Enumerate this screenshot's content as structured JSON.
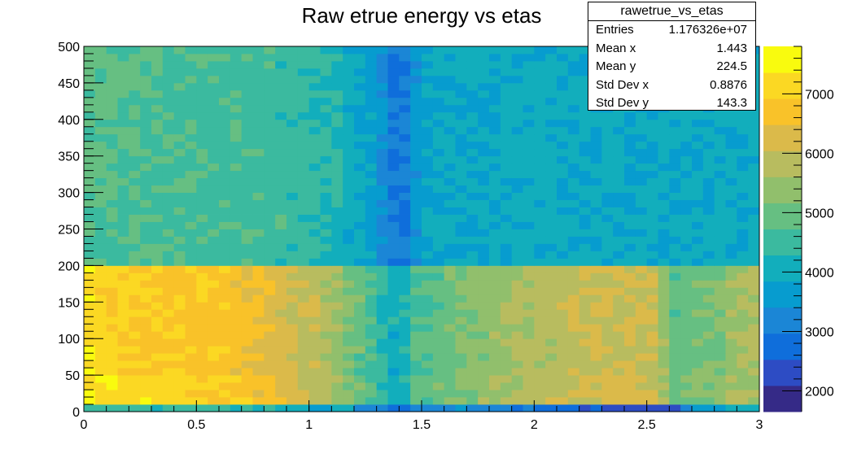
{
  "chart_data": {
    "type": "heatmap",
    "title": "Raw etrue energy vs etas",
    "xlabel": "",
    "ylabel": "",
    "xlim": [
      0,
      3
    ],
    "ylim": [
      0,
      500
    ],
    "x_ticks": [
      "0",
      "0.5",
      "1",
      "1.5",
      "2",
      "2.5",
      "3"
    ],
    "y_ticks": [
      "0",
      "50",
      "100",
      "150",
      "200",
      "250",
      "300",
      "350",
      "400",
      "450",
      "500"
    ],
    "z_ticks": [
      "2000",
      "3000",
      "4000",
      "5000",
      "6000",
      "7000"
    ],
    "zlim": [
      1650,
      7800
    ],
    "bins_x": 60,
    "bin_width_x": 0.05,
    "y_bands": [
      {
        "range": [
          0,
          10
        ],
        "description": "lowest row",
        "eta_profile": [
          [
            0,
            4500
          ],
          [
            0.3,
            4500
          ],
          [
            0.8,
            4400
          ],
          [
            1.2,
            3600
          ],
          [
            1.4,
            2800
          ],
          [
            1.6,
            3400
          ],
          [
            2.0,
            3000
          ],
          [
            2.2,
            2600
          ],
          [
            2.4,
            2200
          ],
          [
            2.6,
            2400
          ],
          [
            2.7,
            3600
          ],
          [
            3.0,
            4200
          ]
        ]
      },
      {
        "range": [
          10,
          50
        ],
        "eta_profile": [
          [
            0,
            7400
          ],
          [
            0.3,
            7200
          ],
          [
            0.6,
            7000
          ],
          [
            0.85,
            6500
          ],
          [
            1.1,
            5800
          ],
          [
            1.3,
            4600
          ],
          [
            1.4,
            4000
          ],
          [
            1.5,
            4900
          ],
          [
            1.75,
            5400
          ],
          [
            2.0,
            5800
          ],
          [
            2.3,
            6200
          ],
          [
            2.55,
            6200
          ],
          [
            2.6,
            5000
          ],
          [
            2.8,
            5300
          ],
          [
            3.0,
            5800
          ]
        ]
      },
      {
        "range": [
          50,
          200
        ],
        "eta_profile": [
          [
            0,
            7200
          ],
          [
            0.3,
            6900
          ],
          [
            0.6,
            6800
          ],
          [
            0.85,
            6300
          ],
          [
            1.1,
            5700
          ],
          [
            1.3,
            4500
          ],
          [
            1.4,
            3900
          ],
          [
            1.5,
            4800
          ],
          [
            1.75,
            5300
          ],
          [
            2.0,
            5700
          ],
          [
            2.3,
            6100
          ],
          [
            2.55,
            6000
          ],
          [
            2.6,
            4900
          ],
          [
            2.8,
            5200
          ],
          [
            3.0,
            5800
          ]
        ]
      },
      {
        "range": [
          200,
          500
        ],
        "eta_profile": [
          [
            0,
            4800
          ],
          [
            0.5,
            4600
          ],
          [
            0.9,
            4500
          ],
          [
            1.1,
            4300
          ],
          [
            1.3,
            3600
          ],
          [
            1.4,
            2800
          ],
          [
            1.5,
            3800
          ],
          [
            2.0,
            4000
          ],
          [
            2.5,
            3900
          ],
          [
            3.0,
            4000
          ]
        ]
      }
    ],
    "palette": [
      "#352a87",
      "#2d4cc4",
      "#0f6edb",
      "#1b86d6",
      "#079ccf",
      "#12aebc",
      "#3bba9f",
      "#66bf82",
      "#91bf6c",
      "#b8bc5f",
      "#dbba4a",
      "#f9c229",
      "#fbd823",
      "#f9fb0e"
    ]
  },
  "stats_box": {
    "name": "rawetrue_vs_etas",
    "rows": [
      {
        "key": "Entries",
        "value": "1.176326e+07"
      },
      {
        "key": "Mean x",
        "value": "1.443"
      },
      {
        "key": "Mean y",
        "value": "224.5"
      },
      {
        "key": "Std Dev x",
        "value": "0.8876"
      },
      {
        "key": "Std Dev y",
        "value": "143.3"
      }
    ]
  }
}
